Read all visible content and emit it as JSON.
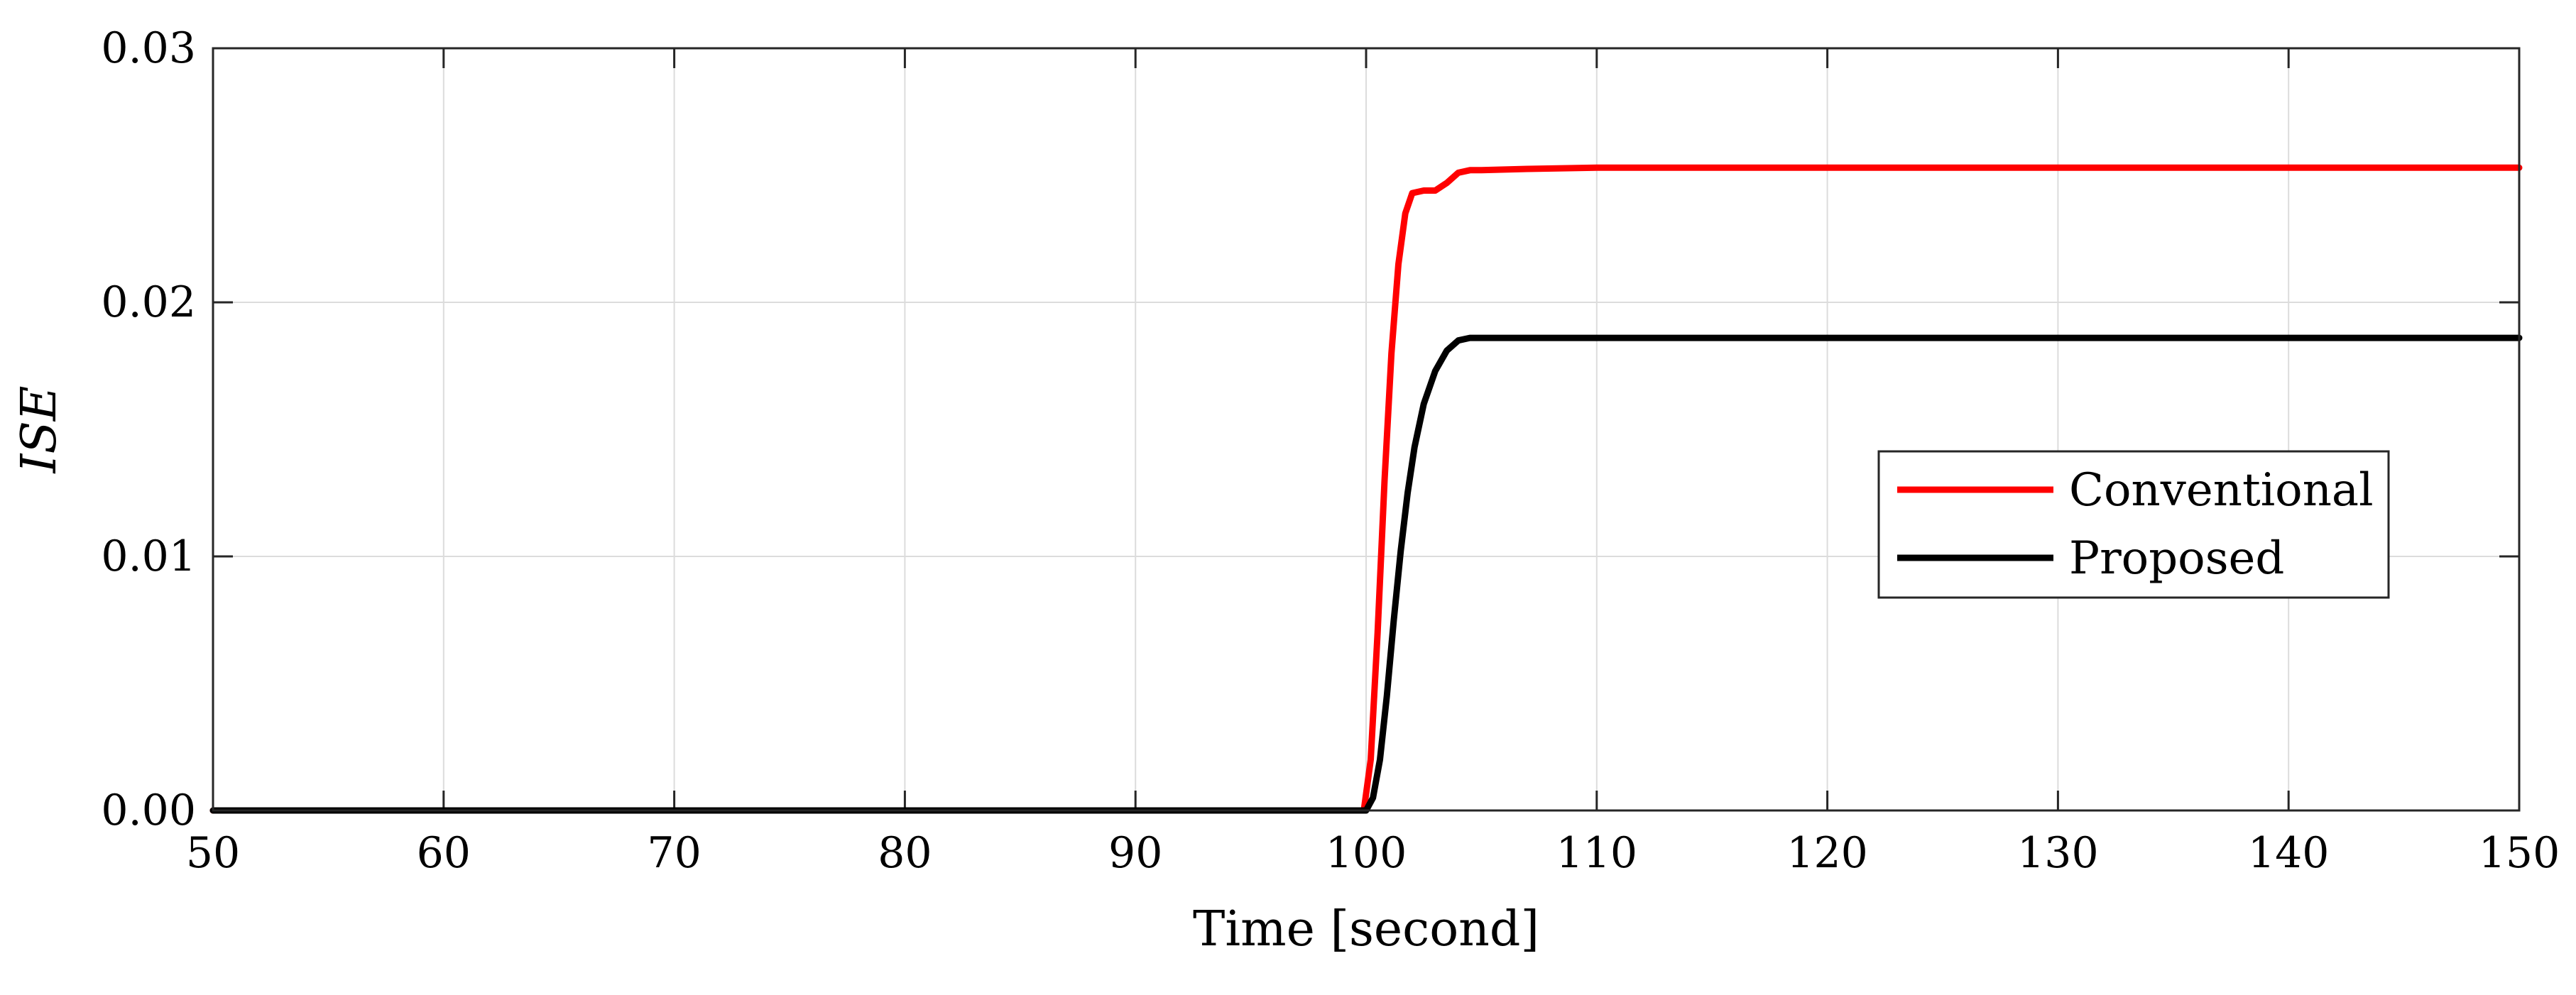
{
  "chart_data": {
    "type": "line",
    "title": "",
    "xlabel": "Time [second]",
    "ylabel": "ISE",
    "xlim": [
      50,
      150
    ],
    "ylim": [
      0,
      0.03
    ],
    "xticks": [
      50,
      60,
      70,
      80,
      90,
      100,
      110,
      120,
      130,
      140,
      150
    ],
    "xtick_labels": [
      "50",
      "60",
      "70",
      "80",
      "90",
      "100",
      "110",
      "120",
      "130",
      "140",
      "150"
    ],
    "yticks": [
      0,
      0.01,
      0.02,
      0.03
    ],
    "ytick_labels": [
      "0.00",
      "0.01",
      "0.02",
      "0.03"
    ],
    "grid": true,
    "legend_position": "right",
    "series": [
      {
        "name": "Conventional",
        "color": "#ff0000",
        "x": [
          50,
          99.9,
          100.2,
          100.5,
          100.8,
          101.1,
          101.4,
          101.7,
          102.0,
          102.5,
          103.0,
          103.5,
          104.0,
          104.5,
          105.0,
          107.0,
          110.0,
          150.0
        ],
        "y": [
          0,
          0,
          0.002,
          0.007,
          0.013,
          0.018,
          0.0215,
          0.0235,
          0.0243,
          0.0244,
          0.0244,
          0.0247,
          0.0251,
          0.0252,
          0.0252,
          0.02525,
          0.0253,
          0.0253
        ]
      },
      {
        "name": "Proposed",
        "color": "#000000",
        "x": [
          50,
          100.0,
          100.3,
          100.6,
          100.9,
          101.2,
          101.5,
          101.8,
          102.1,
          102.5,
          103.0,
          103.5,
          104.0,
          104.5,
          105.0,
          107.0,
          150.0
        ],
        "y": [
          0,
          0,
          0.0005,
          0.002,
          0.0045,
          0.0075,
          0.0102,
          0.0125,
          0.0143,
          0.016,
          0.0173,
          0.0181,
          0.0185,
          0.0186,
          0.0186,
          0.0186,
          0.0186
        ]
      }
    ]
  }
}
